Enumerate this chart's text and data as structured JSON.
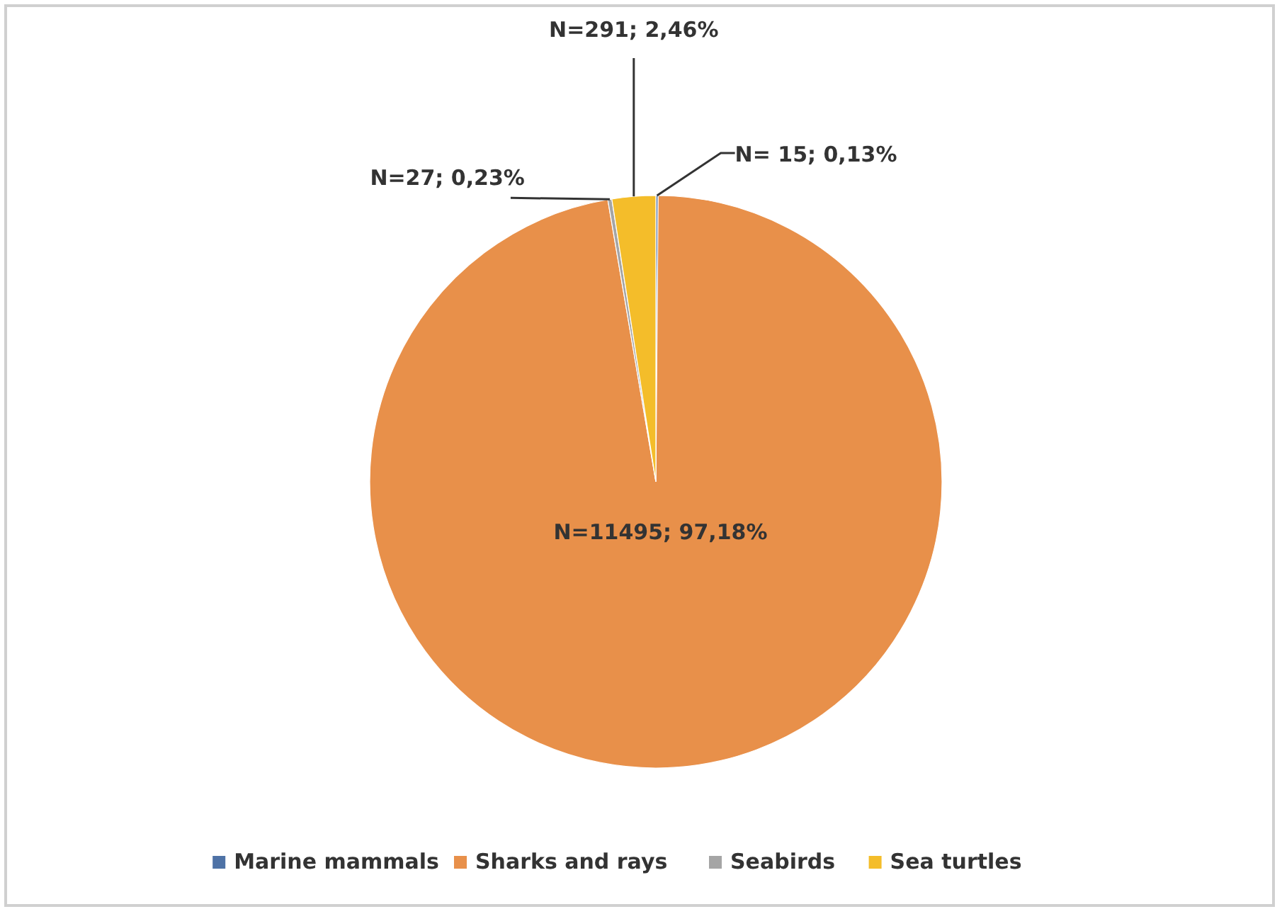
{
  "chart_data": {
    "type": "pie",
    "categories": [
      "Marine mammals",
      "Sharks and rays",
      "Seabirds",
      "Sea turtles"
    ],
    "values": [
      15,
      11495,
      27,
      291
    ],
    "colors": [
      "#4e72a6",
      "#e8904a",
      "#a5a5a5",
      "#f4bd2a"
    ],
    "value_labels": [
      "N= 15; 0,13%",
      "N=11495; 97,18%",
      "N=27; 0,23%",
      "N=291; 2,46%"
    ],
    "legend": "bottom"
  }
}
